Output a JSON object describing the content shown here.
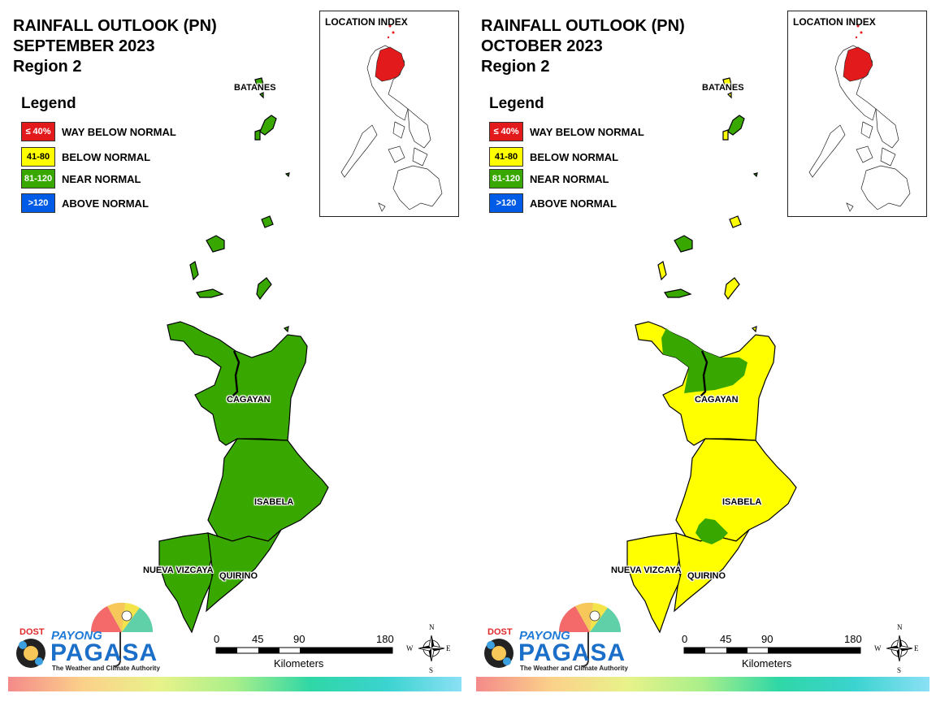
{
  "panels": [
    {
      "title_line1": "RAINFALL OUTLOOK (PN)",
      "title_line2": "SEPTEMBER 2023",
      "title_line3": "Region 2",
      "inset_title": "LOCATION INDEX",
      "labels": {
        "batanes": "BATANES",
        "cagayan": "CAGAYAN",
        "isabela": "ISABELA",
        "nueva_vizcaya": "NUEVA VIZCAYA",
        "quirino": "QUIRINO"
      },
      "region_fill": {
        "batanes": "near_normal",
        "cagayan": "near_normal",
        "isabela": "near_normal",
        "nueva_vizcaya": "near_normal",
        "quirino": "near_normal",
        "islands": "near_normal"
      }
    },
    {
      "title_line1": "RAINFALL OUTLOOK (PN)",
      "title_line2": "OCTOBER 2023",
      "title_line3": "Region 2",
      "inset_title": "LOCATION INDEX",
      "labels": {
        "batanes": "BATANES",
        "cagayan": "CAGAYAN",
        "isabela": "ISABELA",
        "nueva_vizcaya": "NUEVA VIZCAYA",
        "quirino": "QUIRINO"
      },
      "region_fill": {
        "batanes": "below_normal",
        "cagayan": "below_normal",
        "cagayan_patch": "near_normal",
        "isabela": "below_normal",
        "isabela_patch": "near_normal",
        "nueva_vizcaya": "below_normal",
        "quirino": "below_normal",
        "islands": "mixed"
      }
    }
  ],
  "legend": {
    "title": "Legend",
    "items": [
      {
        "range": "≤ 40%",
        "label": "WAY BELOW NORMAL",
        "color": "#e31a1c",
        "text_color": "#ffffff"
      },
      {
        "range": "41-80",
        "label": "BELOW NORMAL",
        "color": "#ffff00",
        "text_color": "#000000"
      },
      {
        "range": "81-120",
        "label": "NEAR NORMAL",
        "color": "#38a800",
        "text_color": "#ffffff"
      },
      {
        "range": ">120",
        "label": "ABOVE NORMAL",
        "color": "#005ce6",
        "text_color": "#ffffff"
      }
    ]
  },
  "scale": {
    "ticks": [
      "0",
      "45",
      "90",
      "180"
    ],
    "unit": "Kilometers"
  },
  "compass": {
    "n": "N",
    "s": "S",
    "e": "E",
    "w": "W"
  },
  "logo": {
    "dost": "DOST",
    "payong": "PAYONG",
    "pagasa": "PAGASA",
    "tagline": "The Weather and Climate Authority"
  },
  "colors": {
    "near_normal": "#38a800",
    "below_normal": "#ffff00",
    "inset_highlight": "#e31a1c",
    "border": "#000000"
  }
}
